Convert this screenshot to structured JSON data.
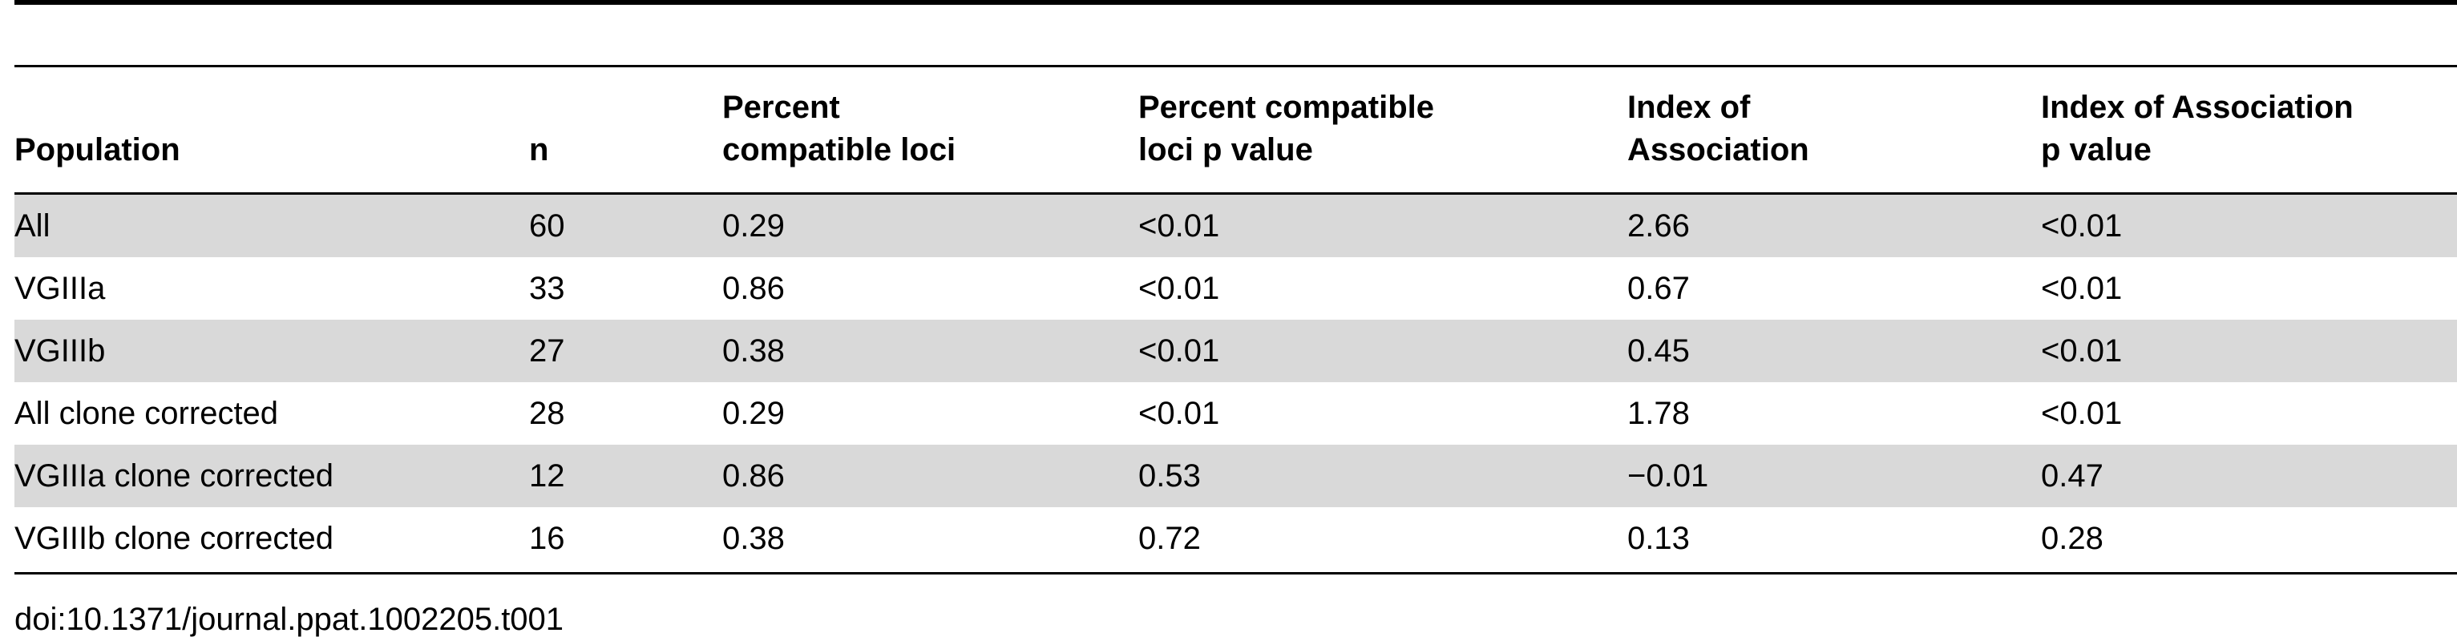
{
  "table": {
    "headers": [
      {
        "line1": "Population",
        "line2": ""
      },
      {
        "line1": "n",
        "line2": ""
      },
      {
        "line1": "Percent",
        "line2": "compatible loci"
      },
      {
        "line1": "Percent compatible",
        "line2": "loci p value"
      },
      {
        "line1": "Index of",
        "line2": "Association"
      },
      {
        "line1": "Index of Association",
        "line2": "p value"
      }
    ],
    "rows": [
      [
        "All",
        "60",
        "0.29",
        "<0.01",
        "2.66",
        "<0.01"
      ],
      [
        "VGIIIa",
        "33",
        "0.86",
        "<0.01",
        "0.67",
        "<0.01"
      ],
      [
        "VGIIIb",
        "27",
        "0.38",
        "<0.01",
        "0.45",
        "<0.01"
      ],
      [
        "All clone corrected",
        "28",
        "0.29",
        "<0.01",
        "1.78",
        "<0.01"
      ],
      [
        "VGIIIa clone corrected",
        "12",
        "0.86",
        "0.53",
        "−0.01",
        "0.47"
      ],
      [
        "VGIIIb clone corrected",
        "16",
        "0.38",
        "0.72",
        "0.13",
        "0.28"
      ]
    ]
  },
  "caption": "doi:10.1371/journal.ppat.1002205.t001",
  "colors": {
    "stripe": "#d9d9d9",
    "rule": "#000000",
    "background": "#ffffff"
  }
}
